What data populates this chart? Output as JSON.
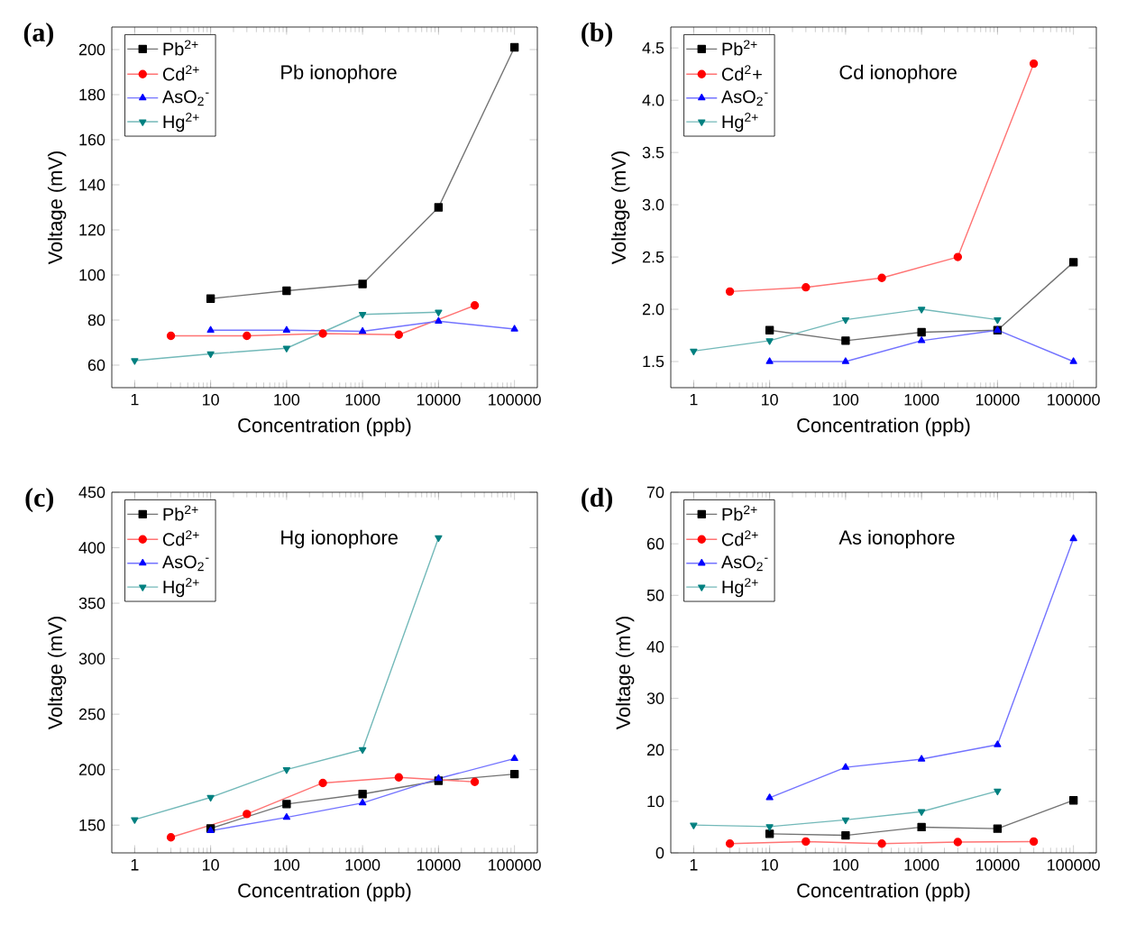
{
  "chart_data": [
    {
      "type": "line",
      "title": "(a)",
      "xlabel": "Concentration (ppb)",
      "ylabel": "Voltage (mV)",
      "annotations": [
        "Pb ionophore"
      ],
      "log": "x",
      "legend": "top left",
      "xlim": [
        0.5,
        200000
      ],
      "xticks": [
        1,
        10,
        100,
        1000,
        10000,
        100000
      ],
      "ylim": [
        50,
        210
      ],
      "yticks": [
        60,
        80,
        100,
        120,
        140,
        160,
        180,
        200
      ],
      "series": [
        {
          "name": "Pb$^{2+}$",
          "color": "#000000",
          "marker": "square",
          "x": [
            10,
            100,
            1000,
            10000,
            100000
          ],
          "values": [
            89.5,
            93,
            96,
            130,
            201
          ]
        },
        {
          "name": "Cd$^{2+}$",
          "color": "#ff0000",
          "marker": "circle",
          "x": [
            3,
            30,
            300,
            3000,
            30000
          ],
          "values": [
            73,
            73,
            74,
            73.5,
            86.5
          ]
        },
        {
          "name": "AsO$_{2}$$^{-}$",
          "color": "#0000ff",
          "marker": "triangle",
          "x": [
            10,
            100,
            1000,
            10000,
            100000
          ],
          "values": [
            75.5,
            75.5,
            75,
            79.5,
            76
          ]
        },
        {
          "name": "Hg$^{2+}$",
          "color": "#008080",
          "marker": "triangle down",
          "x": [
            1,
            10,
            100,
            1000,
            10000
          ],
          "values": [
            62,
            65,
            67.5,
            82.5,
            83.5
          ]
        }
      ]
    },
    {
      "type": "line",
      "title": "(b)",
      "xlabel": "Concentration (ppb)",
      "ylabel": "Voltage (mV)",
      "annotations": [
        "Cd ionophore"
      ],
      "log": "x",
      "legend": "top left",
      "xlim": [
        0.5,
        200000
      ],
      "xticks": [
        1,
        10,
        100,
        1000,
        10000,
        100000
      ],
      "ylim": [
        1.25,
        4.7
      ],
      "yticks": [
        1.5,
        {
          "value": 2,
          "label": "2.0"
        },
        2.5,
        {
          "value": 3,
          "label": "3.0"
        },
        3.5,
        {
          "value": 4,
          "label": "4.0"
        },
        4.5
      ],
      "series": [
        {
          "name": "Pb$^{2+}$",
          "color": "#000000",
          "marker": "square",
          "x": [
            10,
            100,
            1000,
            10000,
            100000
          ],
          "values": [
            1.8,
            1.7,
            1.78,
            1.8,
            2.45
          ]
        },
        {
          "name": "Cd$^{2}$+",
          "color": "#ff0000",
          "marker": "circle",
          "x": [
            3,
            30,
            300,
            3000,
            30000
          ],
          "values": [
            2.17,
            2.21,
            2.3,
            2.5,
            4.35
          ]
        },
        {
          "name": "AsO$_{2}$$^{-}$",
          "color": "#0000ff",
          "marker": "triangle",
          "x": [
            10,
            100,
            1000,
            10000,
            100000
          ],
          "values": [
            1.5,
            1.5,
            1.7,
            1.8,
            1.5
          ]
        },
        {
          "name": "Hg$^{2+}$",
          "color": "#008080",
          "marker": "triangle down",
          "x": [
            1,
            10,
            100,
            1000,
            10000
          ],
          "values": [
            1.6,
            1.7,
            1.9,
            2.0,
            1.9
          ]
        }
      ]
    },
    {
      "type": "line",
      "title": "(c)",
      "xlabel": "Concentration (ppb)",
      "ylabel": "Voltage (mV)",
      "annotations": [
        "Hg ionophore"
      ],
      "log": "x",
      "legend": "top left",
      "xlim": [
        0.5,
        200000
      ],
      "xticks": [
        1,
        10,
        100,
        1000,
        10000,
        100000
      ],
      "ylim": [
        125,
        450
      ],
      "yticks": [
        150,
        200,
        250,
        300,
        350,
        400,
        450
      ],
      "series": [
        {
          "name": "Pb$^{2+}$",
          "color": "#000000",
          "marker": "square",
          "x": [
            10,
            100,
            1000,
            10000,
            100000
          ],
          "values": [
            147,
            169,
            178,
            190,
            196
          ]
        },
        {
          "name": "Cd$^{2+}$",
          "color": "#ff0000",
          "marker": "circle",
          "x": [
            3,
            30,
            300,
            3000,
            30000
          ],
          "values": [
            139,
            160,
            188,
            193,
            189
          ]
        },
        {
          "name": "AsO$_{2}$$^{-}$",
          "color": "#0000ff",
          "marker": "triangle",
          "x": [
            10,
            100,
            1000,
            10000,
            100000
          ],
          "values": [
            145,
            157,
            170,
            192,
            210
          ]
        },
        {
          "name": "Hg$^{2+}$",
          "color": "#008080",
          "marker": "triangle down",
          "x": [
            1,
            10,
            100,
            1000,
            10000
          ],
          "values": [
            155,
            175,
            200,
            218,
            409
          ]
        }
      ]
    },
    {
      "type": "line",
      "title": "(d)",
      "xlabel": "Concentration (ppb)",
      "ylabel": "Voltage (mV)",
      "annotations": [
        "As ionophore"
      ],
      "log": "x",
      "legend": "top left",
      "xlim": [
        0.5,
        200000
      ],
      "xticks": [
        1,
        10,
        100,
        1000,
        10000,
        100000
      ],
      "ylim": [
        0,
        70
      ],
      "yticks": [
        0,
        10,
        20,
        30,
        40,
        50,
        60,
        70
      ],
      "series": [
        {
          "name": "Pb$^{2+}$",
          "color": "#000000",
          "marker": "square",
          "x": [
            10,
            100,
            1000,
            10000,
            100000
          ],
          "values": [
            3.7,
            3.4,
            5,
            4.7,
            10.2
          ]
        },
        {
          "name": "Cd$^{2+}$",
          "color": "#ff0000",
          "marker": "circle",
          "x": [
            3,
            30,
            300,
            3000,
            30000
          ],
          "values": [
            1.8,
            2.2,
            1.8,
            2.1,
            2.2
          ]
        },
        {
          "name": "AsO$_{2}$$^{-}$",
          "color": "#0000ff",
          "marker": "triangle",
          "x": [
            10,
            100,
            1000,
            10000,
            100000
          ],
          "values": [
            10.7,
            16.6,
            18.2,
            21,
            61
          ]
        },
        {
          "name": "Hg$^{2+}$",
          "color": "#008080",
          "marker": "triangle down",
          "x": [
            1,
            10,
            100,
            1000,
            10000
          ],
          "values": [
            5.4,
            5.1,
            6.4,
            8,
            12
          ]
        }
      ]
    }
  ]
}
